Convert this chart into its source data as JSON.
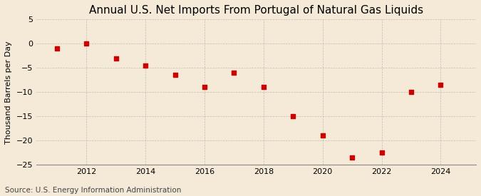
{
  "title": "Annual U.S. Net Imports From Portugal of Natural Gas Liquids",
  "ylabel": "Thousand Barrels per Day",
  "source": "Source: U.S. Energy Information Administration",
  "years": [
    2011,
    2012,
    2013,
    2014,
    2015,
    2016,
    2017,
    2018,
    2019,
    2020,
    2021,
    2022,
    2023,
    2024
  ],
  "values": [
    -1.0,
    0.1,
    -3.0,
    -4.5,
    -6.5,
    -9.0,
    -6.0,
    -9.0,
    -15.0,
    -19.0,
    -23.5,
    -22.5,
    -10.0,
    -8.5
  ],
  "ylim": [
    -25,
    5
  ],
  "yticks": [
    5,
    0,
    -5,
    -10,
    -15,
    -20,
    -25
  ],
  "xticks": [
    2012,
    2014,
    2016,
    2018,
    2020,
    2022,
    2024
  ],
  "xlim": [
    2010.3,
    2025.2
  ],
  "marker_color": "#cc0000",
  "marker_size": 4,
  "bg_color": "#f5ead8",
  "grid_color": "#aaaaaa",
  "title_fontsize": 11,
  "label_fontsize": 8,
  "tick_fontsize": 8,
  "source_fontsize": 7.5
}
